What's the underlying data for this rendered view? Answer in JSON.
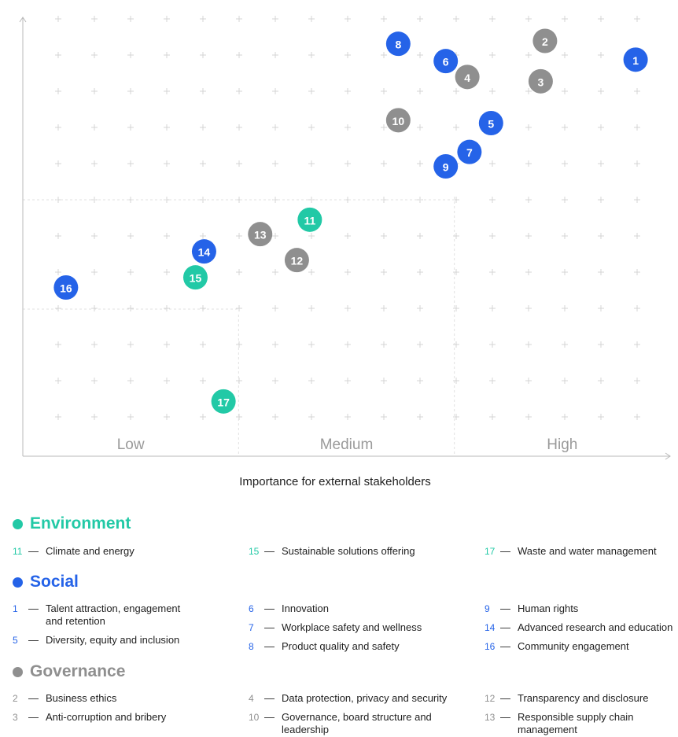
{
  "colors": {
    "environment": "#22c9a6",
    "social": "#2563e8",
    "governance": "#8f8f8f"
  },
  "chart_data": {
    "type": "scatter",
    "title": "",
    "xlabel": "Importance for external stakeholders",
    "ylabel": "",
    "xlim": [
      0,
      3
    ],
    "ylim": [
      0,
      3
    ],
    "x_band_labels": [
      "Low",
      "Medium",
      "High"
    ],
    "points": [
      {
        "id": "1",
        "category": "social",
        "x": 2.84,
        "y": 2.75
      },
      {
        "id": "2",
        "category": "governance",
        "x": 2.42,
        "y": 2.88
      },
      {
        "id": "3",
        "category": "governance",
        "x": 2.4,
        "y": 2.6
      },
      {
        "id": "4",
        "category": "governance",
        "x": 2.06,
        "y": 2.63
      },
      {
        "id": "5",
        "category": "social",
        "x": 2.17,
        "y": 2.31
      },
      {
        "id": "6",
        "category": "social",
        "x": 1.96,
        "y": 2.74
      },
      {
        "id": "7",
        "category": "social",
        "x": 2.07,
        "y": 2.11
      },
      {
        "id": "8",
        "category": "social",
        "x": 1.74,
        "y": 2.86
      },
      {
        "id": "9",
        "category": "social",
        "x": 1.96,
        "y": 2.01
      },
      {
        "id": "10",
        "category": "governance",
        "x": 1.74,
        "y": 2.33
      },
      {
        "id": "11",
        "category": "environment",
        "x": 1.33,
        "y": 1.64
      },
      {
        "id": "12",
        "category": "governance",
        "x": 1.27,
        "y": 1.36
      },
      {
        "id": "13",
        "category": "governance",
        "x": 1.1,
        "y": 1.54
      },
      {
        "id": "14",
        "category": "social",
        "x": 0.84,
        "y": 1.42
      },
      {
        "id": "15",
        "category": "environment",
        "x": 0.8,
        "y": 1.24
      },
      {
        "id": "16",
        "category": "social",
        "x": 0.2,
        "y": 1.17
      },
      {
        "id": "17",
        "category": "environment",
        "x": 0.93,
        "y": 0.38
      }
    ]
  },
  "legend": {
    "environment": {
      "title": "Environment",
      "items": [
        {
          "num": "11",
          "label": "Climate and energy"
        },
        {
          "num": "15",
          "label": "Sustainable solutions offering"
        },
        {
          "num": "17",
          "label": "Waste and water management"
        }
      ]
    },
    "social": {
      "title": "Social",
      "items": [
        {
          "num": "1",
          "label": "Talent attraction, engagement and retention"
        },
        {
          "num": "5",
          "label": "Diversity, equity and inclusion"
        },
        {
          "num": "6",
          "label": "Innovation"
        },
        {
          "num": "7",
          "label": "Workplace safety and wellness"
        },
        {
          "num": "8",
          "label": "Product quality and safety"
        },
        {
          "num": "9",
          "label": "Human rights"
        },
        {
          "num": "14",
          "label": "Advanced research and education"
        },
        {
          "num": "16",
          "label": "Community engagement"
        }
      ]
    },
    "governance": {
      "title": "Governance",
      "items": [
        {
          "num": "2",
          "label": "Business ethics"
        },
        {
          "num": "3",
          "label": "Anti-corruption and bribery"
        },
        {
          "num": "4",
          "label": "Data protection, privacy and security"
        },
        {
          "num": "10",
          "label": "Governance, board structure and leadership"
        },
        {
          "num": "12",
          "label": "Transparency and disclosure"
        },
        {
          "num": "13",
          "label": "Responsible supply chain management"
        }
      ]
    }
  }
}
